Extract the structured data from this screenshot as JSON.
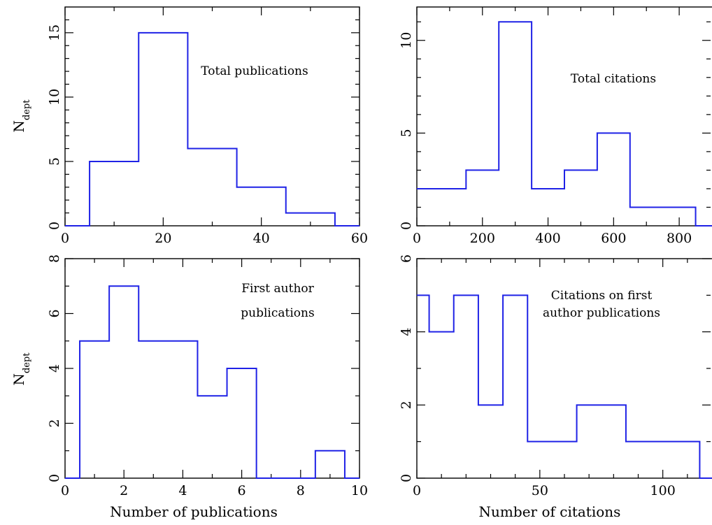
{
  "chart_data": [
    {
      "type": "histogram",
      "annotation": [
        "Total publications"
      ],
      "xlabel": "",
      "ylabel": "N",
      "ylabel_sub": "dept",
      "xlim": [
        0,
        60
      ],
      "ylim": [
        0,
        17
      ],
      "xticks": [
        0,
        20,
        40,
        60
      ],
      "xticks_minor": [
        10,
        30,
        50
      ],
      "yticks": [
        0,
        5,
        10,
        15
      ],
      "yticks_minor": [
        1,
        2,
        3,
        4,
        6,
        7,
        8,
        9,
        11,
        12,
        13,
        14,
        16
      ],
      "x_edges": [
        0,
        5,
        15,
        25,
        35,
        45,
        55,
        60
      ],
      "counts": [
        0,
        5,
        15,
        6,
        3,
        1,
        0
      ],
      "grid": false,
      "line_color": "#1f22e6"
    },
    {
      "type": "histogram",
      "annotation": [
        "Total citations"
      ],
      "xlabel": "",
      "ylabel": "",
      "xlim": [
        0,
        900
      ],
      "ylim": [
        0,
        11.8
      ],
      "xticks": [
        0,
        200,
        400,
        600,
        800
      ],
      "xticks_minor": [
        100,
        300,
        500,
        700
      ],
      "yticks": [
        0,
        5,
        10
      ],
      "yticks_minor": [
        1,
        2,
        3,
        4,
        6,
        7,
        8,
        9,
        11
      ],
      "x_edges": [
        0,
        150,
        250,
        350,
        450,
        550,
        650,
        850,
        900
      ],
      "counts": [
        2,
        3,
        11,
        2,
        3,
        5,
        1,
        0
      ],
      "grid": false,
      "line_color": "#1f22e6"
    },
    {
      "type": "histogram",
      "annotation": [
        "First author",
        "publications"
      ],
      "xlabel": "Number of publications",
      "ylabel": "N",
      "ylabel_sub": "dept",
      "xlim": [
        0,
        10
      ],
      "ylim": [
        0,
        8
      ],
      "xticks": [
        0,
        2,
        4,
        6,
        8,
        10
      ],
      "xticks_minor": [
        1,
        3,
        5,
        7,
        9
      ],
      "yticks": [
        0,
        2,
        4,
        6,
        8
      ],
      "yticks_minor": [
        1,
        3,
        5,
        7
      ],
      "x_edges": [
        0,
        0.5,
        1.5,
        2.5,
        4.5,
        5.5,
        6.5,
        8.5,
        9.5,
        10
      ],
      "counts": [
        0,
        5,
        7,
        5,
        3,
        4,
        0,
        1,
        0
      ],
      "grid": false,
      "line_color": "#1f22e6"
    },
    {
      "type": "histogram",
      "annotation": [
        "Citations on first",
        "author publications"
      ],
      "xlabel": "Number of citations",
      "ylabel": "",
      "xlim": [
        0,
        120
      ],
      "ylim": [
        0,
        6
      ],
      "xticks": [
        0,
        50,
        100
      ],
      "xticks_minor": [
        10,
        20,
        30,
        40,
        60,
        70,
        80,
        90,
        110
      ],
      "yticks": [
        0,
        2,
        4,
        6
      ],
      "yticks_minor": [
        1,
        3,
        5
      ],
      "x_edges": [
        0,
        5,
        15,
        25,
        35,
        45,
        65,
        85,
        115,
        120
      ],
      "counts": [
        5,
        4,
        5,
        2,
        5,
        1,
        2,
        1,
        0
      ],
      "grid": false,
      "line_color": "#1f22e6"
    }
  ]
}
